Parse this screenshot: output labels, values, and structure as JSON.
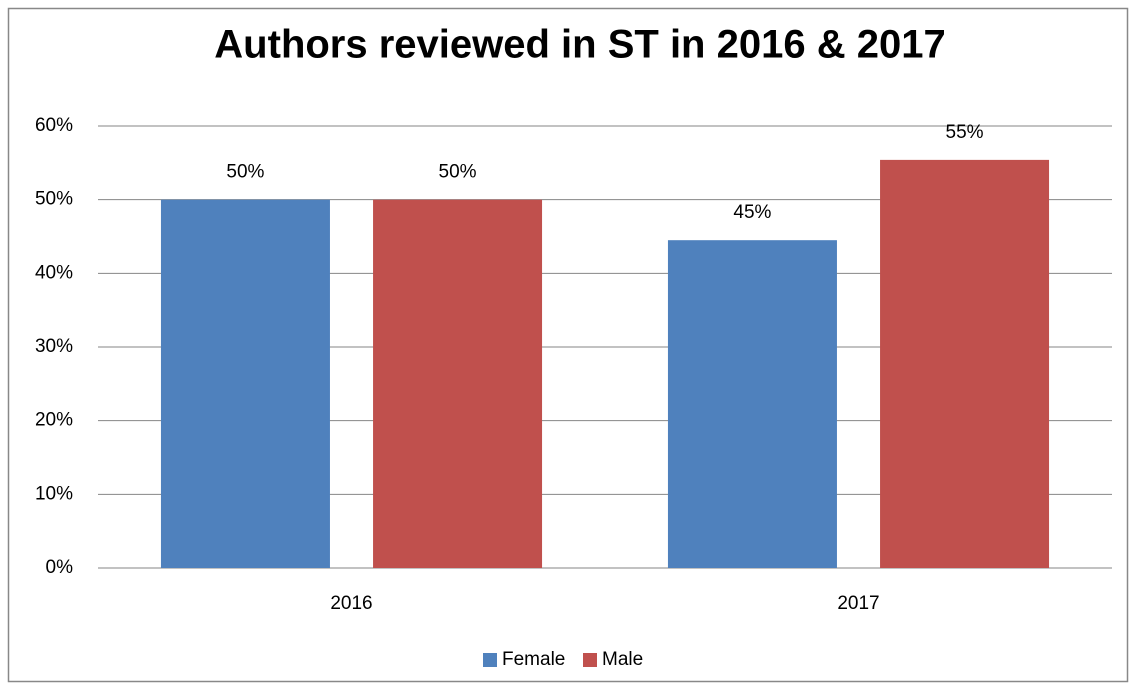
{
  "chart_data": {
    "type": "bar",
    "title": "Authors reviewed in ST in 2016 & 2017",
    "categories": [
      "2016",
      "2017"
    ],
    "series": [
      {
        "name": "Female",
        "color": "#4f81bd",
        "values": [
          50,
          44.5
        ],
        "value_labels": [
          "50%",
          "45%"
        ]
      },
      {
        "name": "Male",
        "color": "#c0504d",
        "values": [
          50,
          55.4
        ],
        "value_labels": [
          "50%",
          "55%"
        ]
      }
    ],
    "ylim": [
      0,
      60
    ],
    "yticks": [
      {
        "value": 0,
        "label": "0%"
      },
      {
        "value": 10,
        "label": "10%"
      },
      {
        "value": 20,
        "label": "20%"
      },
      {
        "value": 30,
        "label": "30%"
      },
      {
        "value": 40,
        "label": "40%"
      },
      {
        "value": 50,
        "label": "50%"
      },
      {
        "value": 60,
        "label": "60%"
      }
    ],
    "grid": true,
    "legend": "bottom"
  }
}
